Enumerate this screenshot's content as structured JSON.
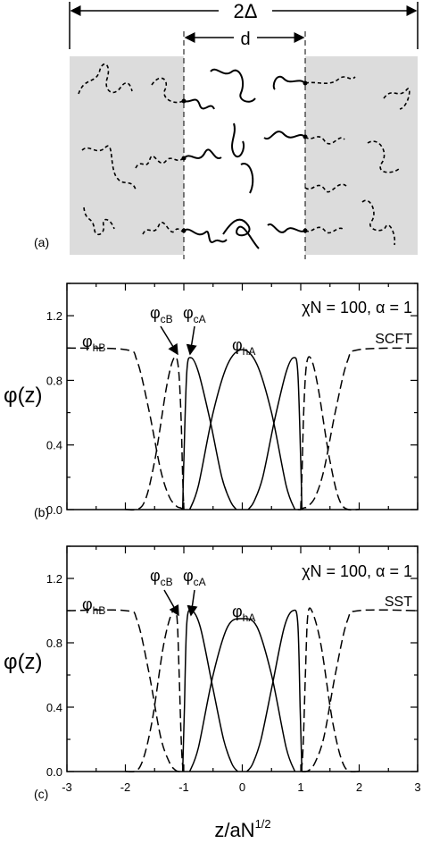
{
  "panel_a": {
    "label": "(a)",
    "dim_outer": "2Δ",
    "dim_inner": "d"
  },
  "chart_data": [
    {
      "type": "line",
      "panel_label": "(b)",
      "params_text": "χN = 100,  α = 1",
      "method": "SCFT",
      "ylabel": "φ(z)",
      "xlabel": "",
      "xlim": [
        -3,
        3
      ],
      "ylim": [
        0,
        1.4
      ],
      "yticks": [
        "0.0",
        "0.4",
        "0.8",
        "1.2"
      ],
      "xticks": [],
      "labels": {
        "hB": "φhB",
        "cB": "φcB",
        "cA": "φcA",
        "hA": "φhA"
      },
      "series": [
        {
          "style": "dashed",
          "x": [
            -3,
            -2.0,
            -1.8,
            -1.6,
            -1.4,
            -1.25,
            -1.12,
            -1.05,
            -1.0,
            -0.95
          ],
          "y": [
            1.0,
            0.99,
            0.92,
            0.62,
            0.25,
            0.08,
            0.02,
            0.01,
            0.0,
            0.0
          ]
        },
        {
          "style": "dashed",
          "x": [
            -2.0,
            -1.7,
            -1.5,
            -1.3,
            -1.18,
            -1.1,
            -1.05,
            -1.02,
            -1.0
          ],
          "y": [
            0.0,
            0.03,
            0.3,
            0.75,
            0.93,
            0.9,
            0.6,
            0.2,
            0.0
          ]
        },
        {
          "style": "solid",
          "x": [
            -1.02,
            -1.0,
            -0.95,
            -0.88,
            -0.75,
            -0.55,
            -0.35,
            -0.2,
            -0.1
          ],
          "y": [
            0.0,
            0.3,
            0.85,
            0.94,
            0.85,
            0.55,
            0.2,
            0.05,
            0.0
          ]
        },
        {
          "style": "solid",
          "x": [
            -0.9,
            -0.75,
            -0.5,
            -0.25,
            0,
            0.25,
            0.5,
            0.75,
            0.9
          ],
          "y": [
            0.0,
            0.15,
            0.6,
            0.9,
            0.99,
            0.9,
            0.6,
            0.15,
            0.0
          ]
        },
        {
          "style": "solid",
          "x": [
            0.1,
            0.2,
            0.35,
            0.55,
            0.75,
            0.88,
            0.95,
            1.0,
            1.02
          ],
          "y": [
            0.0,
            0.05,
            0.2,
            0.55,
            0.85,
            0.94,
            0.85,
            0.3,
            0.0
          ]
        },
        {
          "style": "dashed",
          "x": [
            1.0,
            1.02,
            1.05,
            1.1,
            1.18,
            1.3,
            1.5,
            1.7,
            2.0
          ],
          "y": [
            0.0,
            0.2,
            0.6,
            0.9,
            0.93,
            0.75,
            0.3,
            0.03,
            0.0
          ]
        },
        {
          "style": "dashed",
          "x": [
            0.95,
            1.0,
            1.05,
            1.12,
            1.25,
            1.4,
            1.6,
            1.8,
            2.0,
            3
          ],
          "y": [
            0.0,
            0.0,
            0.01,
            0.02,
            0.08,
            0.25,
            0.62,
            0.92,
            0.99,
            1.0
          ]
        }
      ]
    },
    {
      "type": "line",
      "panel_label": "(c)",
      "params_text": "χN = 100,  α = 1",
      "method": "SST",
      "ylabel": "φ(z)",
      "xlabel": "z/aN",
      "xlabel_sup": "1/2",
      "xlim": [
        -3,
        3
      ],
      "ylim": [
        0,
        1.4
      ],
      "yticks": [
        "0.0",
        "0.4",
        "0.8",
        "1.2"
      ],
      "xticks": [
        "-3",
        "-2",
        "-1",
        "0",
        "1",
        "2",
        "3"
      ],
      "labels": {
        "hB": "φhB",
        "cB": "φcB",
        "cA": "φcA",
        "hA": "φhA"
      },
      "series": [
        {
          "style": "dashed",
          "x": [
            -3,
            -2.0,
            -1.8,
            -1.6,
            -1.4,
            -1.25,
            -1.15,
            -1.08,
            -1.02
          ],
          "y": [
            1.0,
            1.0,
            0.94,
            0.62,
            0.22,
            0.06,
            0.01,
            0.0,
            0.0
          ]
        },
        {
          "style": "dashed",
          "x": [
            -2.0,
            -1.75,
            -1.55,
            -1.35,
            -1.2,
            -1.12,
            -1.08,
            -1.04,
            -1.01
          ],
          "y": [
            0.0,
            0.03,
            0.3,
            0.78,
            0.99,
            0.97,
            0.6,
            0.15,
            0.0
          ]
        },
        {
          "style": "solid",
          "x": [
            -1.02,
            -0.99,
            -0.95,
            -0.87,
            -0.72,
            -0.52,
            -0.32,
            -0.18,
            -0.08
          ],
          "y": [
            0.0,
            0.4,
            0.92,
            1.0,
            0.9,
            0.55,
            0.2,
            0.05,
            0.0
          ]
        },
        {
          "style": "solid",
          "x": [
            -0.9,
            -0.75,
            -0.5,
            -0.25,
            0,
            0.25,
            0.5,
            0.75,
            0.9
          ],
          "y": [
            0.0,
            0.15,
            0.6,
            0.9,
            0.95,
            0.9,
            0.6,
            0.15,
            0.0
          ]
        },
        {
          "style": "solid",
          "x": [
            0.08,
            0.18,
            0.32,
            0.52,
            0.72,
            0.87,
            0.95,
            0.99,
            1.02
          ],
          "y": [
            0.0,
            0.05,
            0.2,
            0.55,
            0.9,
            1.0,
            0.92,
            0.4,
            0.0
          ]
        },
        {
          "style": "dashed",
          "x": [
            1.01,
            1.04,
            1.08,
            1.12,
            1.2,
            1.35,
            1.55,
            1.75,
            2.0
          ],
          "y": [
            0.0,
            0.15,
            0.6,
            0.97,
            0.99,
            0.78,
            0.3,
            0.03,
            0.0
          ]
        },
        {
          "style": "dashed",
          "x": [
            1.02,
            1.08,
            1.15,
            1.25,
            1.4,
            1.6,
            1.8,
            2.0,
            3
          ],
          "y": [
            0.0,
            0.0,
            0.01,
            0.06,
            0.22,
            0.62,
            0.94,
            1.0,
            1.0
          ]
        }
      ]
    }
  ]
}
